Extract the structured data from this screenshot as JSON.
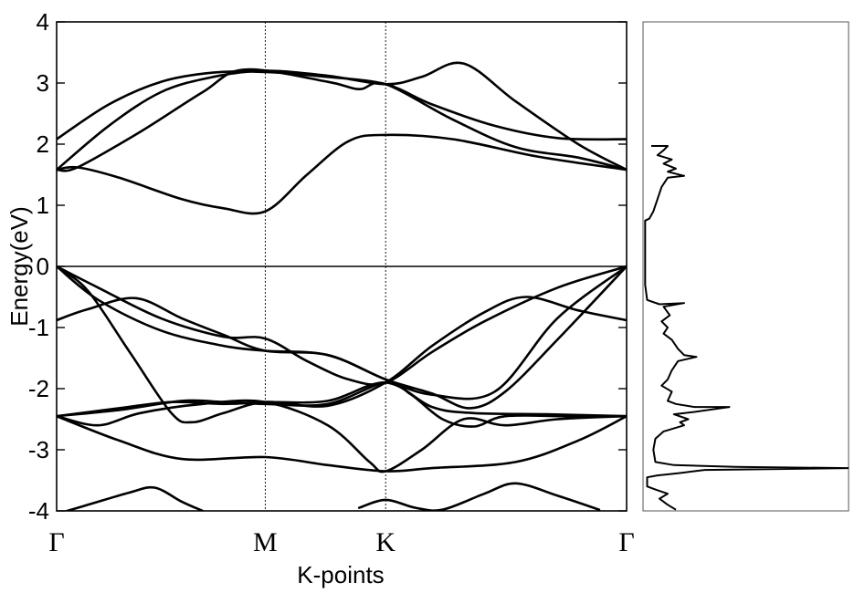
{
  "chart_data": [
    {
      "type": "line",
      "ylabel": "Energy(eV)",
      "xlabel": "K-points",
      "ylim": [
        -4,
        4
      ],
      "yticks": [
        4,
        3,
        2,
        1,
        0,
        -1,
        -2,
        -3,
        -4
      ],
      "ytick_labels": [
        "4",
        "3",
        "2",
        "1",
        "0",
        "-1",
        "-2",
        "-3",
        "-4"
      ],
      "high_symmetry_points": [
        {
          "label": "Γ",
          "x": 0
        },
        {
          "label": "M",
          "x": 1
        },
        {
          "label": "K",
          "x": 1.577
        },
        {
          "label": "Γ",
          "x": 2.732
        }
      ],
      "xlim": [
        0,
        2.732
      ],
      "fermi_level": 0,
      "series": [
        {
          "values": [
            [
              0,
              2.08
            ],
            [
              0.25,
              2.65
            ],
            [
              0.5,
              3.02
            ],
            [
              0.75,
              3.17
            ],
            [
              1.0,
              3.18
            ],
            [
              1.3,
              3.1
            ],
            [
              1.577,
              2.98
            ],
            [
              1.8,
              2.65
            ],
            [
              2.1,
              2.3
            ],
            [
              2.4,
              2.1
            ],
            [
              2.732,
              2.08
            ]
          ]
        },
        {
          "values": [
            [
              0,
              1.58
            ],
            [
              0.25,
              2.3
            ],
            [
              0.5,
              2.85
            ],
            [
              0.75,
              3.1
            ],
            [
              1.0,
              3.2
            ],
            [
              1.3,
              3.12
            ],
            [
              1.577,
              2.98
            ],
            [
              1.75,
              3.1
            ],
            [
              1.95,
              3.32
            ],
            [
              2.2,
              2.7
            ],
            [
              2.5,
              2.0
            ],
            [
              2.732,
              1.58
            ]
          ]
        },
        {
          "values": [
            [
              0,
              1.58
            ],
            [
              0.1,
              1.62
            ],
            [
              0.4,
              2.2
            ],
            [
              0.7,
              2.85
            ],
            [
              0.9,
              3.22
            ],
            [
              1.3,
              3.02
            ],
            [
              1.45,
              2.9
            ],
            [
              1.577,
              2.98
            ],
            [
              1.9,
              2.4
            ],
            [
              2.2,
              1.95
            ],
            [
              2.5,
              1.78
            ],
            [
              2.732,
              1.58
            ]
          ]
        },
        {
          "values": [
            [
              0,
              1.58
            ],
            [
              0.1,
              1.62
            ],
            [
              0.3,
              1.45
            ],
            [
              0.6,
              1.1
            ],
            [
              0.8,
              0.95
            ],
            [
              1.0,
              0.9
            ],
            [
              1.2,
              1.5
            ],
            [
              1.4,
              2.05
            ],
            [
              1.577,
              2.15
            ],
            [
              1.9,
              2.08
            ],
            [
              2.3,
              1.8
            ],
            [
              2.732,
              1.58
            ]
          ]
        },
        {
          "values": [
            [
              0,
              0.0
            ],
            [
              0.2,
              -0.35
            ],
            [
              0.5,
              -0.85
            ],
            [
              0.8,
              -1.15
            ],
            [
              1.0,
              -1.18
            ],
            [
              1.2,
              -1.55
            ],
            [
              1.4,
              -1.85
            ],
            [
              1.577,
              -1.9
            ],
            [
              1.8,
              -1.4
            ],
            [
              2.05,
              -0.9
            ],
            [
              2.4,
              -0.35
            ],
            [
              2.732,
              0.0
            ]
          ]
        },
        {
          "values": [
            [
              0,
              -0.88
            ],
            [
              0.15,
              -0.7
            ],
            [
              0.38,
              -0.52
            ],
            [
              0.6,
              -0.85
            ],
            [
              0.8,
              -1.12
            ],
            [
              1.0,
              -1.38
            ],
            [
              1.3,
              -1.45
            ],
            [
              1.577,
              -1.85
            ],
            [
              1.8,
              -2.1
            ],
            [
              2.1,
              -2.05
            ],
            [
              2.4,
              -0.85
            ],
            [
              2.732,
              0.0
            ]
          ]
        },
        {
          "values": [
            [
              0,
              0.0
            ],
            [
              0.15,
              -0.4
            ],
            [
              0.35,
              -1.4
            ],
            [
              0.55,
              -2.4
            ],
            [
              0.65,
              -2.55
            ],
            [
              0.8,
              -2.4
            ],
            [
              1.0,
              -2.22
            ],
            [
              1.3,
              -2.28
            ],
            [
              1.577,
              -1.9
            ],
            [
              1.8,
              -1.3
            ],
            [
              2.05,
              -0.75
            ],
            [
              2.25,
              -0.5
            ],
            [
              2.5,
              -0.72
            ],
            [
              2.732,
              -0.88
            ]
          ]
        },
        {
          "values": [
            [
              0,
              0.0
            ],
            [
              0.2,
              -0.55
            ],
            [
              0.5,
              -1.05
            ],
            [
              0.8,
              -1.3
            ],
            [
              1.0,
              -1.38
            ],
            [
              1.3,
              -1.45
            ],
            [
              1.577,
              -1.85
            ],
            [
              1.8,
              -2.08
            ],
            [
              1.98,
              -2.32
            ],
            [
              2.15,
              -2.05
            ],
            [
              2.4,
              -1.2
            ],
            [
              2.732,
              0.0
            ]
          ]
        },
        {
          "values": [
            [
              0,
              -2.45
            ],
            [
              0.3,
              -2.32
            ],
            [
              0.55,
              -2.22
            ],
            [
              0.8,
              -2.25
            ],
            [
              1.0,
              -2.22
            ],
            [
              1.3,
              -2.2
            ],
            [
              1.577,
              -1.9
            ],
            [
              1.8,
              -2.3
            ],
            [
              2.0,
              -2.4
            ],
            [
              2.35,
              -2.42
            ],
            [
              2.732,
              -2.45
            ]
          ]
        },
        {
          "values": [
            [
              0,
              -2.45
            ],
            [
              0.3,
              -2.35
            ],
            [
              0.6,
              -2.2
            ],
            [
              0.8,
              -2.22
            ],
            [
              1.0,
              -2.25
            ],
            [
              1.3,
              -2.25
            ],
            [
              1.577,
              -1.9
            ],
            [
              1.7,
              -2.1
            ],
            [
              1.85,
              -2.5
            ],
            [
              2.0,
              -2.62
            ],
            [
              2.15,
              -2.45
            ],
            [
              2.45,
              -2.45
            ],
            [
              2.732,
              -2.45
            ]
          ]
        },
        {
          "values": [
            [
              0,
              -2.45
            ],
            [
              0.3,
              -2.85
            ],
            [
              0.6,
              -3.15
            ],
            [
              1.0,
              -3.12
            ],
            [
              1.3,
              -3.25
            ],
            [
              1.577,
              -3.35
            ],
            [
              1.8,
              -3.3
            ],
            [
              2.2,
              -3.2
            ],
            [
              2.5,
              -2.85
            ],
            [
              2.732,
              -2.45
            ]
          ]
        },
        {
          "values": [
            [
              0,
              -2.45
            ],
            [
              0.2,
              -2.6
            ],
            [
              0.4,
              -2.4
            ],
            [
              0.7,
              -2.25
            ],
            [
              1.0,
              -2.22
            ],
            [
              1.3,
              -2.6
            ],
            [
              1.5,
              -3.2
            ],
            [
              1.577,
              -3.35
            ],
            [
              1.75,
              -3.0
            ],
            [
              1.95,
              -2.5
            ],
            [
              2.15,
              -2.6
            ],
            [
              2.4,
              -2.5
            ],
            [
              2.732,
              -2.45
            ]
          ]
        },
        {
          "values": [
            [
              0,
              -4.05
            ],
            [
              0.15,
              -3.9
            ],
            [
              0.35,
              -3.7
            ],
            [
              0.47,
              -3.62
            ],
            [
              0.6,
              -3.85
            ],
            [
              0.7,
              -4.0
            ]
          ]
        },
        {
          "values": [
            [
              1.45,
              -3.95
            ],
            [
              1.577,
              -3.82
            ],
            [
              1.72,
              -3.95
            ],
            [
              1.85,
              -3.98
            ],
            [
              2.05,
              -3.72
            ],
            [
              2.2,
              -3.55
            ],
            [
              2.4,
              -3.75
            ],
            [
              2.6,
              -3.98
            ]
          ]
        }
      ]
    },
    {
      "type": "line",
      "ylim": [
        -4,
        4
      ],
      "xlim": [
        0,
        1
      ],
      "series": [
        {
          "values": [
            [
              0.04,
              1.97
            ],
            [
              0.12,
              1.97
            ],
            [
              0.1,
              1.9
            ],
            [
              0.07,
              1.82
            ],
            [
              0.14,
              1.75
            ],
            [
              0.1,
              1.68
            ],
            [
              0.16,
              1.6
            ],
            [
              0.12,
              1.55
            ],
            [
              0.2,
              1.48
            ],
            [
              0.12,
              1.45
            ],
            [
              0.09,
              1.3
            ],
            [
              0.07,
              1.1
            ],
            [
              0.05,
              0.9
            ],
            [
              0.03,
              0.78
            ],
            [
              0.01,
              0.75
            ],
            [
              0.01,
              0.3
            ],
            [
              0.01,
              -0.3
            ],
            [
              0.02,
              -0.55
            ],
            [
              0.08,
              -0.62
            ],
            [
              0.2,
              -0.6
            ],
            [
              0.1,
              -0.66
            ],
            [
              0.13,
              -0.8
            ],
            [
              0.09,
              -0.9
            ],
            [
              0.12,
              -1.0
            ],
            [
              0.1,
              -1.1
            ],
            [
              0.14,
              -1.2
            ],
            [
              0.17,
              -1.35
            ],
            [
              0.2,
              -1.45
            ],
            [
              0.26,
              -1.48
            ],
            [
              0.17,
              -1.55
            ],
            [
              0.14,
              -1.7
            ],
            [
              0.12,
              -1.85
            ],
            [
              0.09,
              -1.95
            ],
            [
              0.14,
              -2.05
            ],
            [
              0.12,
              -2.2
            ],
            [
              0.16,
              -2.25
            ],
            [
              0.25,
              -2.3
            ],
            [
              0.42,
              -2.3
            ],
            [
              0.25,
              -2.38
            ],
            [
              0.15,
              -2.42
            ],
            [
              0.22,
              -2.5
            ],
            [
              0.18,
              -2.55
            ],
            [
              0.2,
              -2.6
            ],
            [
              0.1,
              -2.7
            ],
            [
              0.06,
              -2.82
            ],
            [
              0.05,
              -3.0
            ],
            [
              0.06,
              -3.2
            ],
            [
              0.15,
              -3.25
            ],
            [
              0.45,
              -3.28
            ],
            [
              1.0,
              -3.3
            ],
            [
              0.3,
              -3.33
            ],
            [
              0.18,
              -3.38
            ],
            [
              0.07,
              -3.42
            ],
            [
              0.02,
              -3.45
            ],
            [
              0.02,
              -3.6
            ],
            [
              0.06,
              -3.65
            ],
            [
              0.12,
              -3.72
            ],
            [
              0.08,
              -3.8
            ],
            [
              0.12,
              -3.9
            ],
            [
              0.16,
              -3.98
            ]
          ]
        }
      ]
    }
  ]
}
